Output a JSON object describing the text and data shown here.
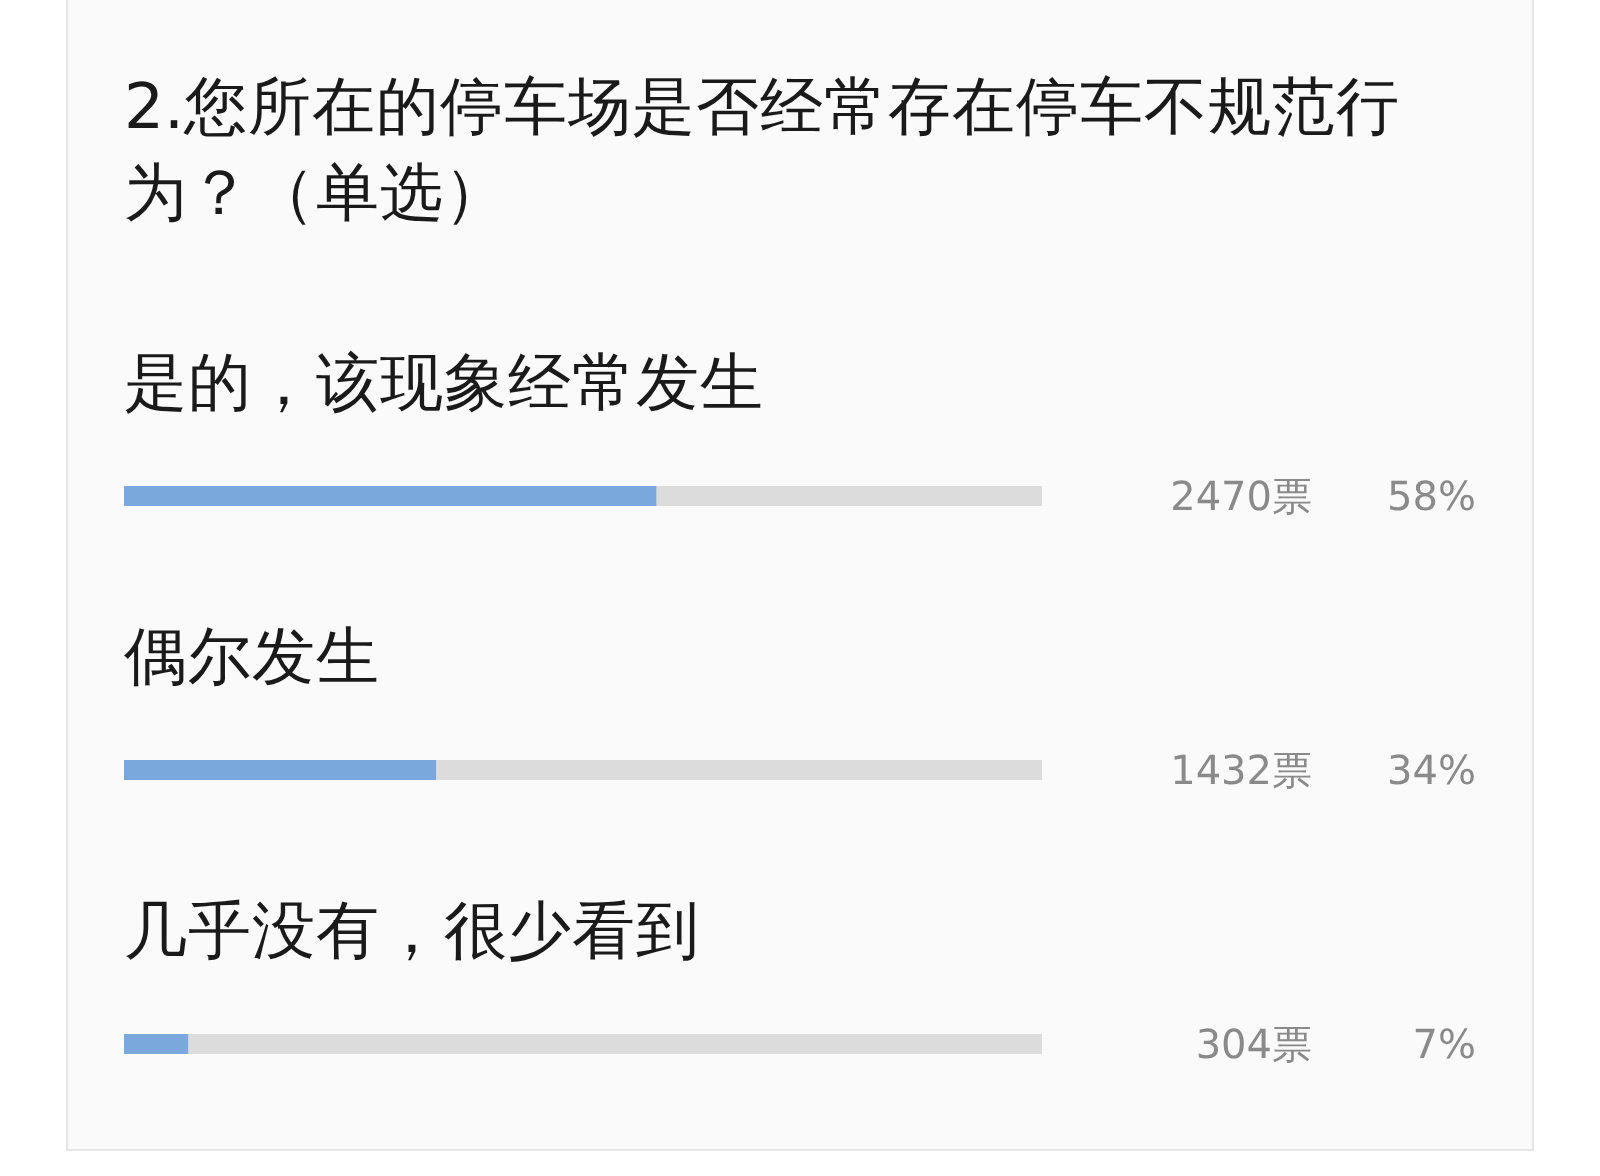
{
  "chart_data": {
    "type": "bar",
    "orientation": "horizontal",
    "title": "2.您所在的停车场是否经常存在停车不规范行为？（单选）",
    "categories": [
      "是的，该现象经常发生",
      "偶尔发生",
      "几乎没有，很少看到"
    ],
    "values": [
      58,
      34,
      7
    ],
    "color": "#7aa8dc",
    "xlim": [
      0,
      100
    ],
    "value_labels": [
      "58%",
      "34%",
      "7%"
    ],
    "annotations": [
      "2470票",
      "1432票",
      "304票"
    ]
  }
}
